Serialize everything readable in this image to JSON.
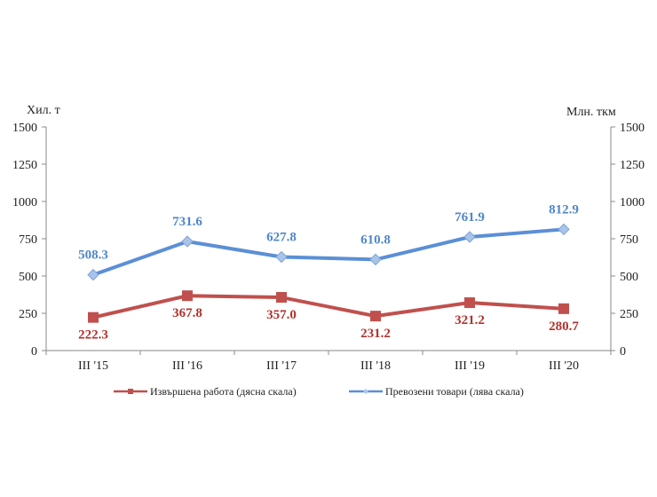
{
  "chart_data": {
    "type": "line",
    "categories": [
      "III '15",
      "III '16",
      "III '17",
      "III '18",
      "III '19",
      "III '20"
    ],
    "left_axis": {
      "label": "Хил. т",
      "range": [
        0,
        1500
      ],
      "ticks": [
        0,
        250,
        500,
        750,
        1000,
        1250,
        1500
      ]
    },
    "right_axis": {
      "label": "Млн. ткм",
      "range": [
        0,
        1500
      ],
      "ticks": [
        0,
        250,
        500,
        750,
        1000,
        1250,
        1500
      ]
    },
    "series": [
      {
        "name": "Извършена работа (дясна скала)",
        "axis": "right",
        "color": "#c0504d",
        "marker": "square",
        "values": [
          222.3,
          367.8,
          357.0,
          231.2,
          321.2,
          280.7
        ],
        "labels": [
          "222.3",
          "367.8",
          "357.0",
          "231.2",
          "321.2",
          "280.7"
        ]
      },
      {
        "name": "Превозени товари (лява скала)",
        "axis": "left",
        "color": "#5b8fd6",
        "marker": "diamond",
        "values": [
          508.3,
          731.6,
          627.8,
          610.8,
          761.9,
          812.9
        ],
        "labels": [
          "508.3",
          "731.6",
          "627.8",
          "610.8",
          "761.9",
          "812.9"
        ]
      }
    ],
    "legend_position": "bottom"
  }
}
